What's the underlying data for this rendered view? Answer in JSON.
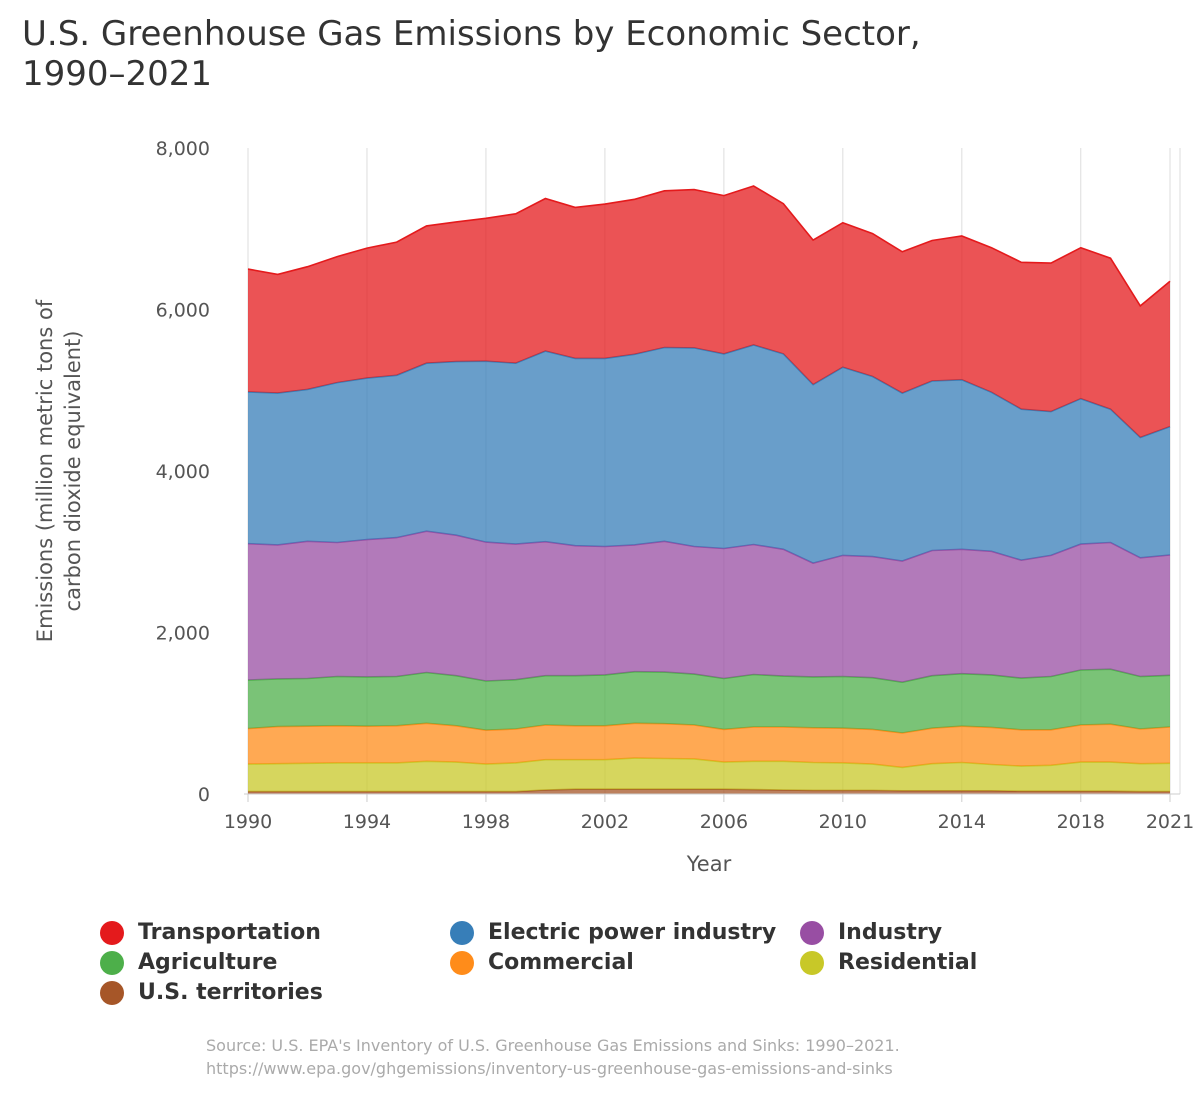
{
  "title_line1": "U.S. Greenhouse Gas Emissions by Economic Sector,",
  "title_line2": "1990–2021",
  "source_line1": "Source: U.S. EPA's Inventory of U.S. Greenhouse Gas Emissions and Sinks: 1990–2021.",
  "source_line2": "https://www.epa.gov/ghgemissions/inventory-us-greenhouse-gas-emissions-and-sinks",
  "chart_data": {
    "type": "area",
    "stacked": true,
    "title": "U.S. Greenhouse Gas Emissions by Economic Sector, 1990–2021",
    "xlabel": "Year",
    "ylabel": "Emissions (million metric tons of carbon dioxide equivalent)",
    "ylabel_lines": [
      "Emissions (million metric tons of",
      "carbon dioxide equivalent)"
    ],
    "ylim": [
      0,
      8000
    ],
    "yticks": [
      0,
      2000,
      4000,
      6000,
      8000
    ],
    "ytick_labels": [
      "0",
      "2,000",
      "4,000",
      "6,000",
      "8,000"
    ],
    "xticks": [
      1990,
      1994,
      1998,
      2002,
      2006,
      2010,
      2014,
      2018,
      2021
    ],
    "xtick_labels": [
      "1990",
      "1994",
      "1998",
      "2002",
      "2006",
      "2010",
      "2014",
      "2018",
      "2021"
    ],
    "grid": "vertical",
    "legend_position": "bottom",
    "x": [
      1990,
      1991,
      1992,
      1993,
      1994,
      1995,
      1996,
      1997,
      1998,
      1999,
      2000,
      2001,
      2002,
      2003,
      2004,
      2005,
      2006,
      2007,
      2008,
      2009,
      2010,
      2011,
      2012,
      2013,
      2014,
      2015,
      2016,
      2017,
      2018,
      2019,
      2020,
      2021
    ],
    "series": [
      {
        "name": "U.S. territories",
        "color": "#a65628",
        "values": [
          30,
          30,
          30,
          30,
          30,
          30,
          30,
          30,
          30,
          30,
          50,
          60,
          60,
          60,
          60,
          60,
          60,
          55,
          50,
          45,
          45,
          45,
          40,
          40,
          40,
          40,
          35,
          35,
          35,
          35,
          30,
          30
        ]
      },
      {
        "name": "Residential",
        "color": "#c8c828",
        "values": [
          340,
          345,
          350,
          355,
          355,
          355,
          375,
          365,
          340,
          355,
          375,
          365,
          365,
          385,
          380,
          375,
          335,
          350,
          355,
          345,
          340,
          325,
          290,
          335,
          350,
          325,
          310,
          320,
          360,
          360,
          345,
          350
        ]
      },
      {
        "name": "Commercial",
        "color": "#ff8c1a",
        "values": [
          440,
          460,
          460,
          460,
          455,
          460,
          470,
          450,
          420,
          420,
          430,
          420,
          420,
          430,
          430,
          420,
          405,
          425,
          425,
          430,
          430,
          430,
          425,
          440,
          450,
          460,
          450,
          440,
          460,
          470,
          430,
          450
        ]
      },
      {
        "name": "Agriculture",
        "color": "#4daf4a",
        "values": [
          600,
          590,
          590,
          610,
          610,
          610,
          630,
          620,
          610,
          610,
          610,
          620,
          630,
          640,
          640,
          630,
          630,
          650,
          630,
          630,
          640,
          640,
          630,
          650,
          650,
          650,
          640,
          660,
          680,
          680,
          650,
          640
        ]
      },
      {
        "name": "Industry",
        "color": "#984ea3",
        "values": [
          1690,
          1660,
          1700,
          1660,
          1700,
          1720,
          1750,
          1740,
          1720,
          1680,
          1660,
          1610,
          1590,
          1570,
          1620,
          1580,
          1610,
          1610,
          1570,
          1410,
          1500,
          1500,
          1500,
          1550,
          1540,
          1530,
          1460,
          1500,
          1560,
          1570,
          1470,
          1490
        ]
      },
      {
        "name": "Electric power industry",
        "color": "#377eb8",
        "values": [
          1880,
          1880,
          1880,
          1980,
          2000,
          2010,
          2080,
          2150,
          2240,
          2240,
          2360,
          2320,
          2330,
          2360,
          2400,
          2460,
          2410,
          2470,
          2420,
          2210,
          2330,
          2230,
          2080,
          2100,
          2100,
          1970,
          1870,
          1780,
          1800,
          1650,
          1490,
          1590
        ]
      },
      {
        "name": "Transportation",
        "color": "#e41a1c",
        "values": [
          1520,
          1470,
          1520,
          1560,
          1610,
          1650,
          1700,
          1730,
          1770,
          1850,
          1890,
          1870,
          1910,
          1920,
          1940,
          1960,
          1960,
          1970,
          1860,
          1790,
          1790,
          1770,
          1750,
          1740,
          1780,
          1790,
          1820,
          1840,
          1870,
          1870,
          1630,
          1800
        ]
      }
    ]
  },
  "legend": [
    {
      "label": "Transportation",
      "color": "#e41a1c"
    },
    {
      "label": "Electric power industry",
      "color": "#377eb8"
    },
    {
      "label": "Industry",
      "color": "#984ea3"
    },
    {
      "label": "Agriculture",
      "color": "#4daf4a"
    },
    {
      "label": "Commercial",
      "color": "#ff8c1a"
    },
    {
      "label": "Residential",
      "color": "#c8c828"
    },
    {
      "label": "U.S. territories",
      "color": "#a65628"
    }
  ]
}
